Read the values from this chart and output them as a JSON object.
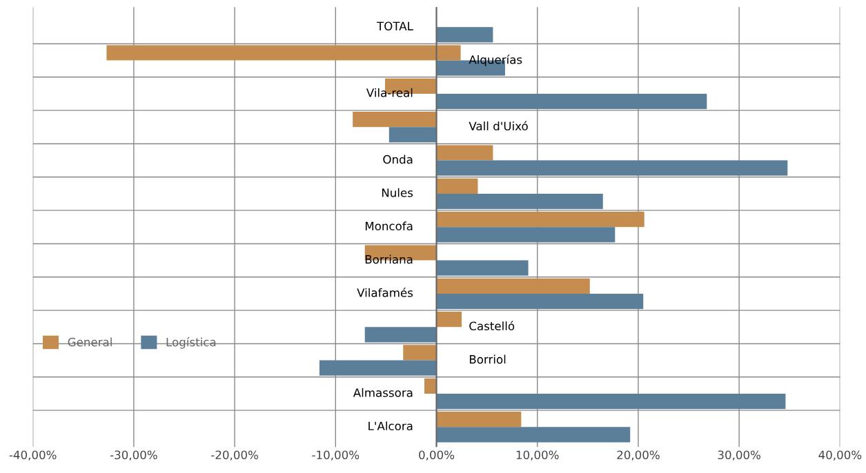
{
  "chart_data": {
    "type": "bar",
    "orientation": "horizontal",
    "categories": [
      "TOTAL",
      "Alquerías",
      "Vila-real",
      "Vall d'Uixó",
      "Onda",
      "Nules",
      "Moncofa",
      "Borriana",
      "Vilafamés",
      "Castelló",
      "Borriol",
      "Almassora",
      "L'Alcora"
    ],
    "series": [
      {
        "name": "General",
        "color": "#c58c50",
        "values": [
          null,
          -32.7,
          -5.1,
          -8.3,
          5.6,
          4.1,
          20.6,
          -7.1,
          15.2,
          2.5,
          -3.3,
          -1.2,
          8.4
        ]
      },
      {
        "name": "Logística",
        "color": "#5b7f99",
        "values": [
          5.6,
          6.8,
          26.8,
          -4.7,
          34.8,
          16.5,
          17.7,
          9.1,
          20.5,
          -7.1,
          -11.6,
          34.6,
          19.2
        ]
      },
      {
        "color": "#c58c50",
        "values": [
          null,
          2.4,
          null,
          null,
          null,
          null,
          null,
          null,
          null,
          null,
          null,
          null,
          null
        ]
      }
    ],
    "xlim": [
      -40,
      40
    ],
    "xticks": [
      {
        "value": -40,
        "label": "-40,00%"
      },
      {
        "value": -30,
        "label": "-30,00%"
      },
      {
        "value": -20,
        "label": "-20,00%"
      },
      {
        "value": -10,
        "label": "-10,00%"
      },
      {
        "value": 0,
        "label": "0,00%"
      },
      {
        "value": 10,
        "label": "10,00%"
      },
      {
        "value": 20,
        "label": "20,00%"
      },
      {
        "value": 30,
        "label": "30,00%"
      },
      {
        "value": 40,
        "label": "40,00%"
      }
    ],
    "grid": true,
    "legend": "bottom left"
  }
}
